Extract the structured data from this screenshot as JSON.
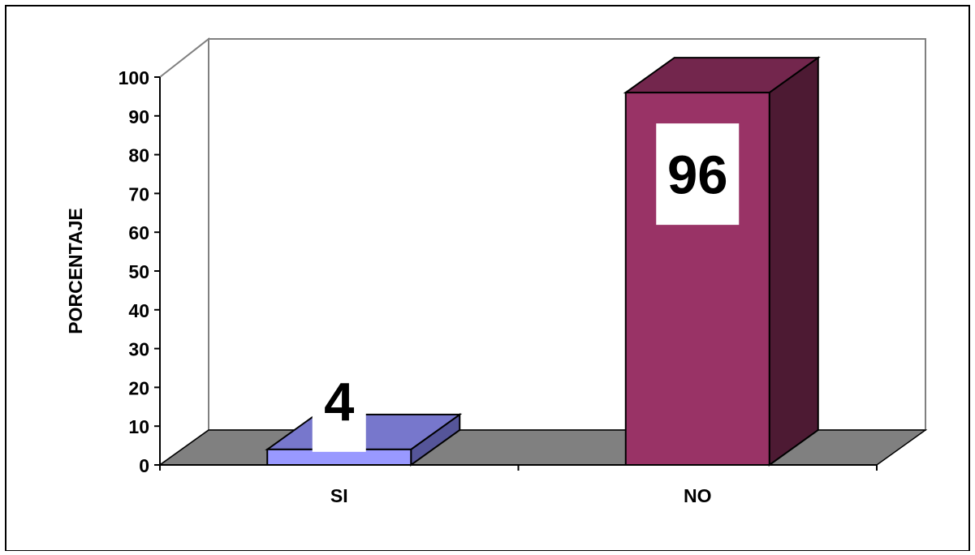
{
  "chart_data": {
    "type": "bar",
    "style": "3d",
    "title": "",
    "xlabel": "",
    "ylabel": "PORCENTAJE",
    "categories": [
      "SI",
      "NO"
    ],
    "values": [
      4,
      96
    ],
    "data_labels": [
      "4",
      "96"
    ],
    "ylim": [
      0,
      100
    ],
    "yticks": [
      "0",
      "10",
      "20",
      "30",
      "40",
      "50",
      "60",
      "70",
      "80",
      "90",
      "100"
    ],
    "grid": false,
    "legend": "none",
    "colors": {
      "SI": {
        "front": "#9999ff",
        "top": "#7777cc",
        "side": "#555599"
      },
      "NO": {
        "front": "#993366",
        "top": "#73264d",
        "side": "#4d1a33"
      },
      "floor": "#808080",
      "walls": "#ffffff"
    }
  }
}
